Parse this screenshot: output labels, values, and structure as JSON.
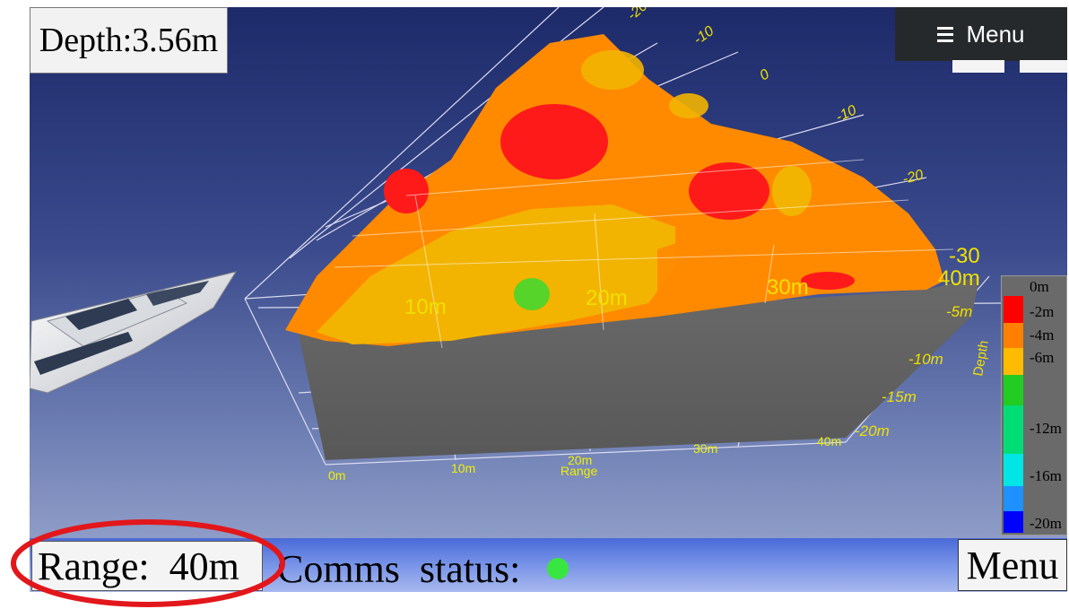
{
  "header": {
    "depth_label": "Depth:3.56m",
    "menu_label": "Menu"
  },
  "footer": {
    "range_label": "Range:  40m",
    "comms_label": "Comms  status:",
    "comms_status_color": "#39e641",
    "menu_label": "Menu",
    "highlight_color": "#e2171c"
  },
  "sonar_view": {
    "range_ticks": [
      "0m",
      "10m",
      "20m",
      "30m",
      "40m"
    ],
    "range_axis_label": "Range",
    "surface_range_labels": [
      "10m",
      "20m",
      "30m",
      "40m"
    ],
    "depth_ticks": [
      "-5m",
      "-10m",
      "-15m",
      "-20m"
    ],
    "depth_axis_label": "Depth",
    "lateral_ticks": [
      "-20",
      "-10",
      "0",
      "-10",
      "-20",
      "-30"
    ]
  },
  "depth_legend": {
    "labels": [
      "0m",
      "-2m",
      "-4m",
      "-6m",
      "-12m",
      "-16m",
      "-20m"
    ],
    "colors": [
      "#ff0000",
      "#ff8000",
      "#ffbb00",
      "#22cc22",
      "#00dd77",
      "#00e5e5",
      "#1e90ff",
      "#0000ff"
    ]
  }
}
